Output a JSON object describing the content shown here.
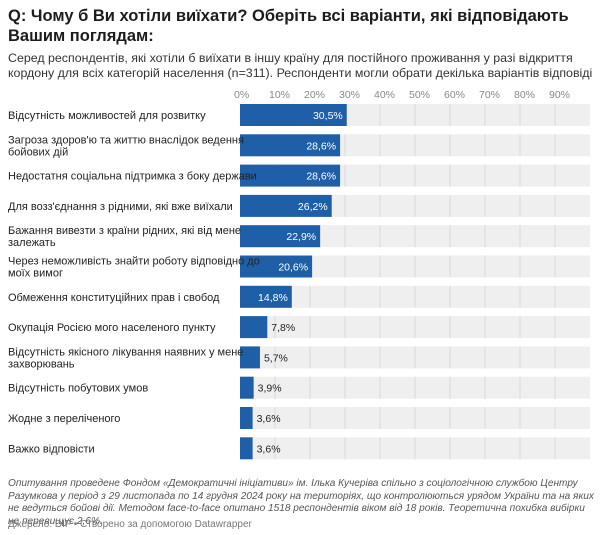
{
  "title": "Q: Чому б Ви хотіли виїхати? Оберіть всі варіанти, які відповідають Вашим поглядам:",
  "subtitle": "Серед респондентів, які хотіли б виїхати в іншу країну для постійного проживання у разі відкриття кордону для всіх категорій населення (n=311). Респонденти могли обрати декілька варіантів відповіді",
  "notes": "Опитування проведене Фондом «Демократичні ініціативи» ім. Ілька Кучеріва спільно з соціологічною службою Центру Разумкова у період з 29 листопада по 14 грудня 2024 року на територіях, що контролюються урядом України та на яких не ведуться бойові дії. Методом face-to-face опитано 1518 респондентів віком від 18 років. Теоретична похибка вибірки не перевищує 2,6%.",
  "source": "Джерело: DIF • Створено за допомогою Datawrapper",
  "colors": {
    "bar": "#1f5fa8",
    "track": "#efefef",
    "gridline": "#d9d9d9"
  },
  "chart_data": {
    "type": "bar",
    "orientation": "horizontal",
    "unit": "%",
    "xlim": [
      0,
      100
    ],
    "ticks": [
      "0%",
      "10%",
      "20%",
      "30%",
      "40%",
      "50%",
      "60%",
      "70%",
      "80%",
      "90%"
    ],
    "tick_values": [
      0,
      10,
      20,
      30,
      40,
      50,
      60,
      70,
      80,
      90
    ],
    "categories": [
      "Відсутність можливостей для розвитку",
      "Загроза здоров'ю та життю внаслідок ведення бойових дій",
      "Недостатня соціальна підтримка з боку держави",
      "Для возз'єднання з рідними, які вже виїхали",
      "Бажання вивезти з країни рідних, які від мене залежать",
      "Через неможливість знайти роботу відповідно до моїх вимог",
      "Обмеження конституційних прав і свобод",
      "Окупація Росією мого населеного пункту",
      "Відсутність якісного лікування наявних у мене захворювань",
      "Відсутність побутових умов",
      "Жодне з переліченого",
      "Важко відповісти"
    ],
    "category_lines": [
      [
        "Відсутність можливостей для розвитку"
      ],
      [
        "Загроза здоров'ю та життю внаслідок ведення",
        "бойових дій"
      ],
      [
        "Недостатня соціальна підтримка з боку держави"
      ],
      [
        "Для возз'єднання з рідними, які вже виїхали"
      ],
      [
        "Бажання вивезти з країни рідних, які від мене",
        "залежать"
      ],
      [
        "Через неможливість знайти роботу відповідно до",
        "моїх вимог"
      ],
      [
        "Обмеження конституційних прав і свобод"
      ],
      [
        "Окупація Росією мого населеного пункту"
      ],
      [
        "Відсутність якісного лікування наявних у мене",
        "захворювань"
      ],
      [
        "Відсутність побутових умов"
      ],
      [
        "Жодне з переліченого"
      ],
      [
        "Важко відповісти"
      ]
    ],
    "values": [
      30.5,
      28.6,
      28.6,
      26.2,
      22.9,
      20.6,
      14.8,
      7.8,
      5.7,
      3.9,
      3.6,
      3.6
    ],
    "value_labels": [
      "30,5%",
      "28,6%",
      "28,6%",
      "26,2%",
      "22,9%",
      "20,6%",
      "14,8%",
      "7,8%",
      "5,7%",
      "3,9%",
      "3,6%",
      "3,6%"
    ]
  }
}
